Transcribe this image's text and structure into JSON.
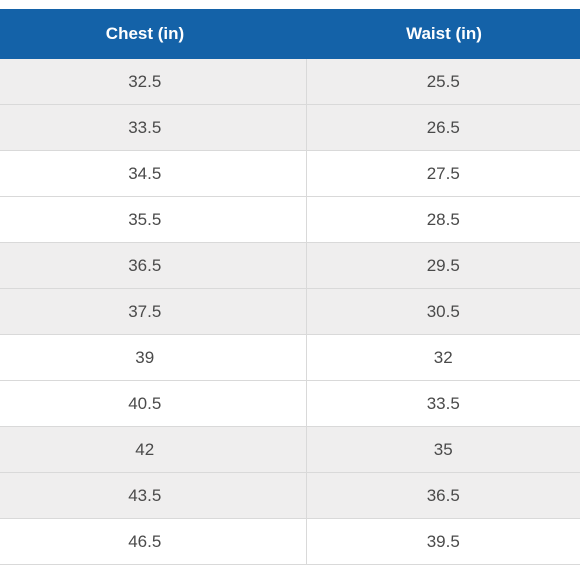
{
  "table": {
    "headers": [
      "Chest (in)",
      "Waist (in)"
    ],
    "rows": [
      [
        "32.5",
        "25.5"
      ],
      [
        "33.5",
        "26.5"
      ],
      [
        "34.5",
        "27.5"
      ],
      [
        "35.5",
        "28.5"
      ],
      [
        "36.5",
        "29.5"
      ],
      [
        "37.5",
        "30.5"
      ],
      [
        "39",
        "32"
      ],
      [
        "40.5",
        "33.5"
      ],
      [
        "42",
        "35"
      ],
      [
        "43.5",
        "36.5"
      ],
      [
        "46.5",
        "39.5"
      ]
    ]
  },
  "colors": {
    "header_background": "#1462a8",
    "header_text": "#ffffff",
    "row_shaded": "#efeeee",
    "row_plain": "#ffffff",
    "cell_text": "#4a4a4a",
    "divider": "#d9d9d9"
  }
}
